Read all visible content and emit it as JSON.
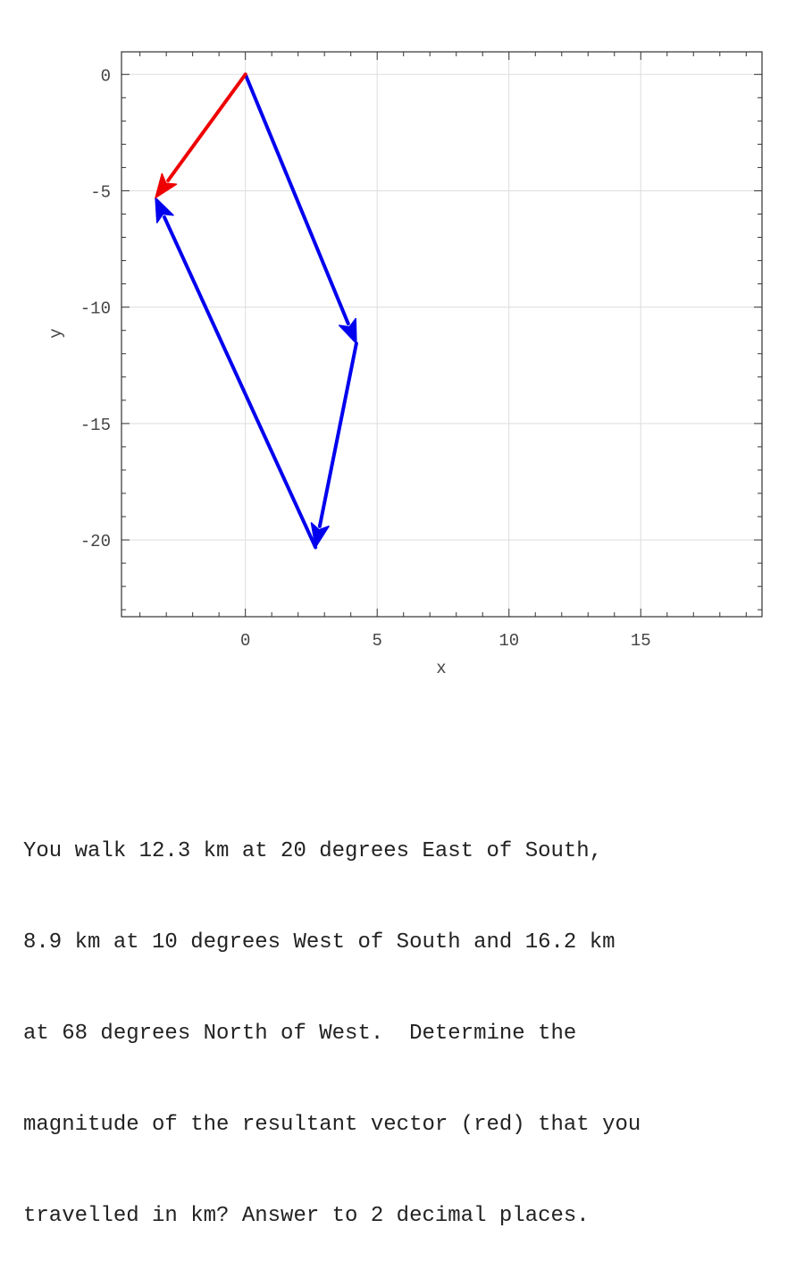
{
  "chart_data": {
    "type": "vector-plot",
    "xlabel": "x",
    "ylabel": "y",
    "xlim": [
      -4.7,
      19.6
    ],
    "ylim": [
      -23.3,
      0.97
    ],
    "xticks": [
      0,
      5,
      10,
      15
    ],
    "yticks": [
      0,
      -5,
      -10,
      -15,
      -20
    ],
    "grid": true,
    "vectors": [
      {
        "name": "A",
        "from": [
          0,
          0
        ],
        "to": [
          4.21,
          -11.56
        ],
        "color": "#0000ee"
      },
      {
        "name": "B",
        "from": [
          4.21,
          -11.56
        ],
        "to": [
          2.66,
          -20.32
        ],
        "color": "#0000ee"
      },
      {
        "name": "C",
        "from": [
          2.66,
          -20.32
        ],
        "to": [
          -3.41,
          -5.3
        ],
        "color": "#0000ee"
      },
      {
        "name": "R",
        "from": [
          0,
          0
        ],
        "to": [
          -3.41,
          -5.3
        ],
        "color": "#ee0000"
      }
    ]
  },
  "question": {
    "lines": [
      "You walk 12.3 km at 20 degrees East of South,",
      "8.9 km at 10 degrees West of South and 16.2 km",
      "at 68 degrees North of West.  Determine the",
      "magnitude of the resultant vector (red) that you",
      "travelled in km? Answer to 2 decimal places."
    ]
  }
}
